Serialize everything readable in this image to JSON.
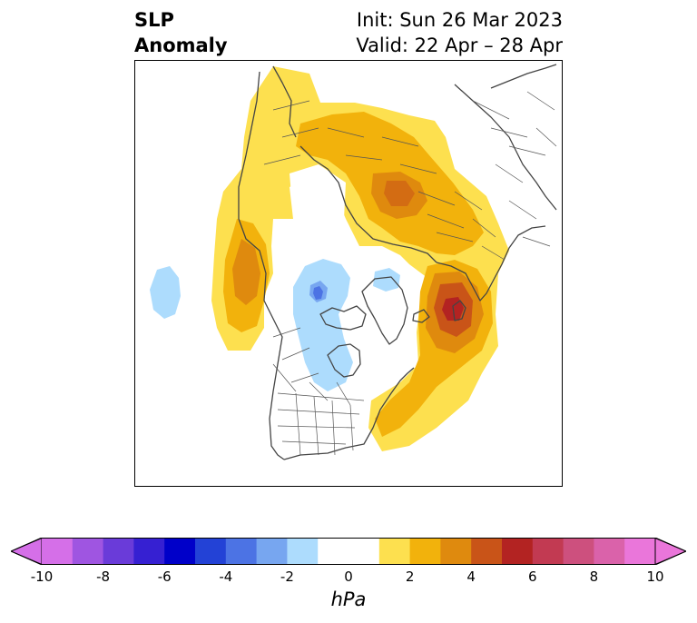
{
  "header": {
    "title_line1": "SLP",
    "title_line2": "Anomaly",
    "init_text": "Init: Sun 26 Mar 2023",
    "valid_text": "Valid: 22 Apr – 28 Apr"
  },
  "colorbar": {
    "unit": "hPa",
    "tick_labels": [
      "-10",
      "-8",
      "-6",
      "-4",
      "-2",
      "0",
      "2",
      "4",
      "6",
      "8",
      "10"
    ],
    "colors": [
      "#d56fe8",
      "#9f55e1",
      "#6a3bd9",
      "#3620d2",
      "#0000c9",
      "#2342d6",
      "#4c73e4",
      "#77a6f0",
      "#addcfd",
      "#ffffff",
      "#ffffff",
      "#fde04f",
      "#f2b20c",
      "#df8a0e",
      "#c95418",
      "#b32322",
      "#c23a52",
      "#cd507e",
      "#da62aa",
      "#ea76da"
    ],
    "under_color": "#d56fe8",
    "over_color": "#ea76da"
  }
}
